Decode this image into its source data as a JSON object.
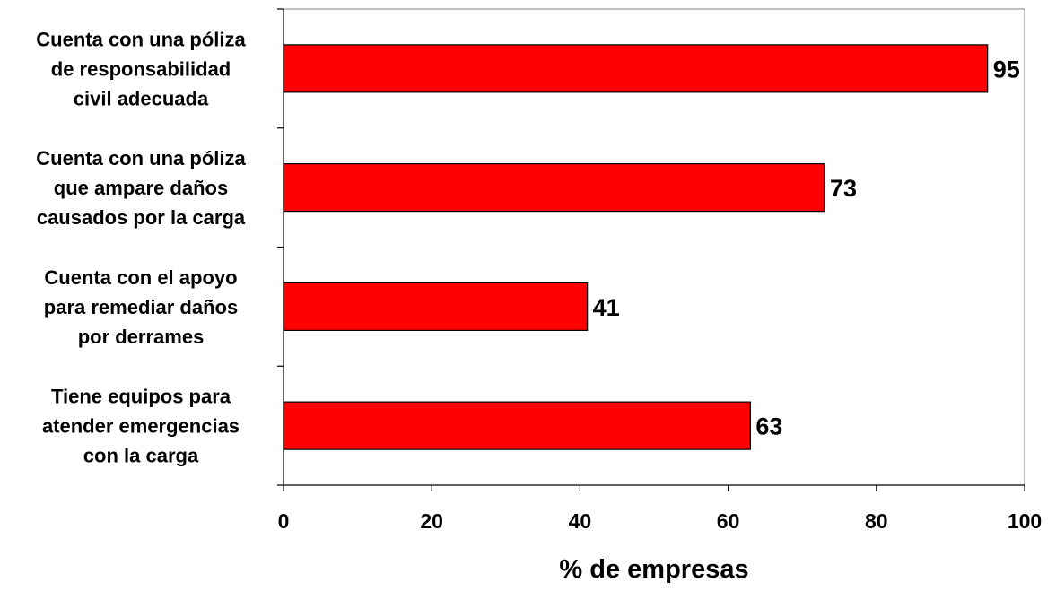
{
  "chart_data": {
    "type": "bar",
    "orientation": "horizontal",
    "categories": [
      [
        "Cuenta con una póliza",
        "de responsabilidad",
        "civil adecuada"
      ],
      [
        "Cuenta con una póliza",
        "que ampare daños",
        "causados por la carga"
      ],
      [
        "Cuenta con el apoyo",
        "para remediar daños",
        "por derrames"
      ],
      [
        "Tiene equipos para",
        "atender emergencias",
        "con la carga"
      ]
    ],
    "values": [
      95,
      73,
      41,
      63
    ],
    "data_labels": [
      "95",
      "73",
      "41",
      "63"
    ],
    "xlabel": "% de empresas",
    "ylabel": "",
    "xlim": [
      0,
      100
    ],
    "xticks": [
      0,
      20,
      40,
      60,
      80,
      100
    ],
    "xtick_labels": [
      "0",
      "20",
      "40",
      "60",
      "80",
      "100"
    ],
    "grid": false,
    "legend": "none",
    "bar_color": "#ff0000",
    "bar_edge_color": "#000000"
  }
}
